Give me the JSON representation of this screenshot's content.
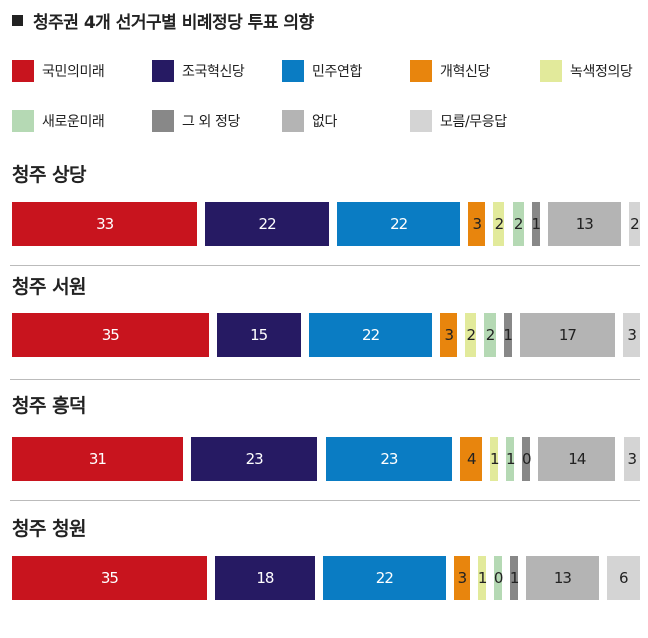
{
  "chart_data": {
    "type": "bar",
    "orientation": "horizontal",
    "stacked": true,
    "title": "청주권 4개 선거구별 비례정당 투표 의향",
    "legend_position": "top",
    "grid": false,
    "xlim": [
      0,
      100
    ],
    "series": [
      {
        "name": "국민의미래",
        "color": "#c8141e"
      },
      {
        "name": "조국혁신당",
        "color": "#261a63"
      },
      {
        "name": "민주연합",
        "color": "#0a7cc3"
      },
      {
        "name": "개혁신당",
        "color": "#e8850d"
      },
      {
        "name": "녹색정의당",
        "color": "#e2ea9b"
      },
      {
        "name": "새로운미래",
        "color": "#b5d9b4"
      },
      {
        "name": "그 외 정당",
        "color": "#888888"
      },
      {
        "name": "없다",
        "color": "#b4b4b4"
      },
      {
        "name": "모름/무응답",
        "color": "#d4d4d4"
      }
    ],
    "categories": [
      "청주 상당",
      "청주 서원",
      "청주 흥덕",
      "청주 청원"
    ],
    "values": [
      [
        33,
        22,
        22,
        3,
        2,
        2,
        1,
        13,
        2
      ],
      [
        35,
        15,
        22,
        3,
        2,
        2,
        1,
        17,
        3
      ],
      [
        31,
        23,
        23,
        4,
        1,
        1,
        0,
        14,
        3
      ],
      [
        35,
        18,
        22,
        3,
        1,
        0,
        1,
        13,
        6
      ]
    ]
  }
}
